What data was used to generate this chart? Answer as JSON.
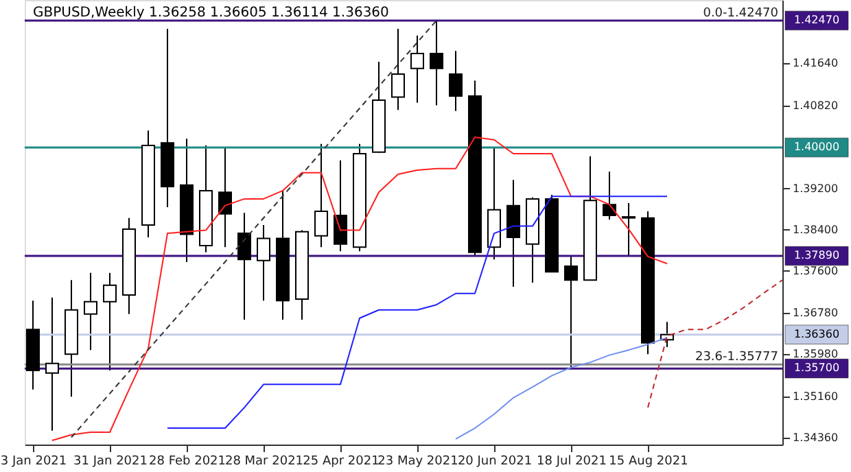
{
  "chart_data": {
    "type": "candlestick",
    "title": "GBPUSD,Weekly  1.36258 1.36605 1.36114 1.36360",
    "x": [
      "2021-01-03",
      "2021-01-10",
      "2021-01-17",
      "2021-01-24",
      "2021-01-31",
      "2021-02-07",
      "2021-02-14",
      "2021-02-21",
      "2021-02-28",
      "2021-03-07",
      "2021-03-14",
      "2021-03-21",
      "2021-03-28",
      "2021-04-04",
      "2021-04-11",
      "2021-04-18",
      "2021-04-25",
      "2021-05-02",
      "2021-05-09",
      "2021-05-16",
      "2021-05-23",
      "2021-05-30",
      "2021-06-06",
      "2021-06-13",
      "2021-06-20",
      "2021-06-27",
      "2021-07-04",
      "2021-07-11",
      "2021-07-18",
      "2021-07-25",
      "2021-08-01",
      "2021-08-08",
      "2021-08-15",
      "2021-08-22"
    ],
    "ohlc": [
      [
        1.3646,
        1.3702,
        1.3529,
        1.3566
      ],
      [
        1.3561,
        1.3708,
        1.3449,
        1.358
      ],
      [
        1.3598,
        1.3742,
        1.3515,
        1.3684
      ],
      [
        1.3676,
        1.3756,
        1.3606,
        1.37
      ],
      [
        1.37,
        1.3756,
        1.3566,
        1.3732
      ],
      [
        1.3713,
        1.3863,
        1.3676,
        1.3841
      ],
      [
        1.3849,
        1.4033,
        1.3825,
        1.4004
      ],
      [
        1.4009,
        1.4231,
        1.3884,
        1.3924
      ],
      [
        1.3927,
        1.4017,
        1.3777,
        1.3831
      ],
      [
        1.3809,
        1.4004,
        1.3796,
        1.3916
      ],
      [
        1.3913,
        1.3999,
        1.3806,
        1.3871
      ],
      [
        1.3833,
        1.3873,
        1.3665,
        1.3782
      ],
      [
        1.378,
        1.3849,
        1.3702,
        1.3823
      ],
      [
        1.3823,
        1.3916,
        1.3665,
        1.3702
      ],
      [
        1.3705,
        1.3839,
        1.3665,
        1.3836
      ],
      [
        1.3828,
        1.4007,
        1.3806,
        1.3876
      ],
      [
        1.3868,
        1.3975,
        1.3798,
        1.3812
      ],
      [
        1.3806,
        1.4007,
        1.3798,
        1.3988
      ],
      [
        1.3991,
        1.4167,
        1.399,
        1.4092
      ],
      [
        1.4098,
        1.4231,
        1.4073,
        1.4143
      ],
      [
        1.4154,
        1.4218,
        1.4087,
        1.4183
      ],
      [
        1.4183,
        1.4247,
        1.4082,
        1.4154
      ],
      [
        1.4143,
        1.4188,
        1.4071,
        1.41
      ],
      [
        1.41,
        1.413,
        1.379,
        1.3796
      ],
      [
        1.3806,
        1.3999,
        1.3782,
        1.3879
      ],
      [
        1.3887,
        1.3937,
        1.3729,
        1.3825
      ],
      [
        1.3812,
        1.3903,
        1.3737,
        1.39
      ],
      [
        1.39,
        1.3908,
        1.3757,
        1.3758
      ],
      [
        1.3769,
        1.3788,
        1.3572,
        1.3742
      ],
      [
        1.3742,
        1.3983,
        1.3741,
        1.3897
      ],
      [
        1.3889,
        1.3953,
        1.386,
        1.3868
      ],
      [
        1.3865,
        1.3892,
        1.379,
        1.3863
      ],
      [
        1.3863,
        1.3876,
        1.3598,
        1.362
      ],
      [
        1.36258,
        1.36605,
        1.36114,
        1.3636
      ]
    ],
    "series": [
      {
        "type": "line",
        "color": "#ff2020",
        "line_style": "solid",
        "values": [
          null,
          1.343,
          1.3441,
          1.3446,
          1.3446,
          1.3529,
          1.3609,
          1.3833,
          1.3836,
          1.3839,
          1.3887,
          1.39,
          1.39,
          1.3916,
          1.3951,
          1.3951,
          1.3839,
          1.3839,
          1.3913,
          1.3948,
          1.3956,
          1.3959,
          1.3959,
          1.402,
          1.4015,
          1.3988,
          1.3988,
          1.3988,
          1.3905,
          1.3905,
          1.3889,
          1.3841,
          1.3788,
          1.3774
        ]
      },
      {
        "type": "line",
        "color": "#2020ff",
        "line_style": "solid",
        "values": [
          null,
          null,
          null,
          null,
          null,
          null,
          null,
          1.3454,
          1.3454,
          1.3454,
          1.3454,
          1.3494,
          1.3539,
          1.3539,
          1.3539,
          1.3539,
          1.3539,
          1.3668,
          1.3684,
          1.3684,
          1.3684,
          1.3694,
          1.3716,
          1.3716,
          1.3833,
          1.3847,
          1.3847,
          1.3905,
          1.3905,
          1.3905,
          1.3905,
          1.3905,
          1.3905,
          1.3905
        ]
      },
      {
        "type": "line",
        "color": "#6f8ff0",
        "line_style": "solid",
        "values": [
          null,
          null,
          null,
          null,
          null,
          null,
          null,
          null,
          null,
          null,
          null,
          null,
          null,
          null,
          null,
          null,
          null,
          null,
          null,
          null,
          null,
          null,
          1.3433,
          1.3454,
          1.3481,
          1.3513,
          1.3534,
          1.3556,
          1.3572,
          1.3582,
          1.3596,
          1.3606,
          1.3617,
          1.363
        ]
      },
      {
        "type": "line",
        "color": "#c0282a",
        "line_style": "dashed",
        "x": [
          "2021-08-15",
          "2021-08-22",
          "2021-08-29",
          "2021-09-05",
          "2021-09-12",
          "2021-09-19",
          "2021-09-26",
          "2021-10-03"
        ],
        "values": [
          1.3494,
          1.3633,
          1.3646,
          1.3646,
          1.3665,
          1.3689,
          1.3716,
          1.3742
        ]
      },
      {
        "type": "line",
        "color": "#333333",
        "line_style": "dashed",
        "x": [
          "2021-01-17",
          "2021-05-30"
        ],
        "values": [
          1.3436,
          1.4247
        ]
      }
    ],
    "xlim": [
      "2020-12-31",
      "2021-10-03"
    ],
    "xticks": [
      {
        "value": "2021-01-03",
        "label": "3 Jan 2021"
      },
      {
        "value": "2021-01-31",
        "label": "31 Jan 2021"
      },
      {
        "value": "2021-02-28",
        "label": "28 Feb 2021"
      },
      {
        "value": "2021-03-28",
        "label": "28 Mar 2021"
      },
      {
        "value": "2021-04-25",
        "label": "25 Apr 2021"
      },
      {
        "value": "2021-05-23",
        "label": "23 May 2021"
      },
      {
        "value": "2021-06-20",
        "label": "20 Jun 2021"
      },
      {
        "value": "2021-07-18",
        "label": "18 Jul 2021"
      },
      {
        "value": "2021-08-15",
        "label": "15 Aug 2021"
      }
    ],
    "ylim": [
      1.3422,
      1.4287
    ],
    "yticks": [
      {
        "value": 1.3436,
        "label": "1.34360"
      },
      {
        "value": 1.3516,
        "label": "1.35160"
      },
      {
        "value": 1.3598,
        "label": "1.35980"
      },
      {
        "value": 1.3678,
        "label": "1.36780"
      },
      {
        "value": 1.376,
        "label": "1.37600"
      },
      {
        "value": 1.384,
        "label": "1.38400"
      },
      {
        "value": 1.392,
        "label": "1.39200"
      },
      {
        "value": 1.4082,
        "label": "1.40820"
      },
      {
        "value": 1.4164,
        "label": "1.41640"
      }
    ],
    "ref_lines": [
      {
        "axis": "y",
        "value": 1.4247,
        "label": "1.42470",
        "color": "#3d1380"
      },
      {
        "axis": "y",
        "value": 1.4,
        "label": "1.40000",
        "color": "#1f8a86"
      },
      {
        "axis": "y",
        "value": 1.3789,
        "label": "1.37890",
        "color": "#3d1380"
      },
      {
        "axis": "y",
        "value": 1.3636,
        "label": "1.36360",
        "color": "#c4cde8"
      },
      {
        "axis": "y",
        "value": 1.35777,
        "color": "#8a8a8a"
      },
      {
        "axis": "y",
        "value": 1.357,
        "label": "1.35700",
        "color": "#3d1380"
      }
    ],
    "annotations": [
      {
        "text": "0.0-1.42470",
        "y": 1.4247
      },
      {
        "text": "23.6-1.35777",
        "y": 1.35777
      }
    ]
  }
}
